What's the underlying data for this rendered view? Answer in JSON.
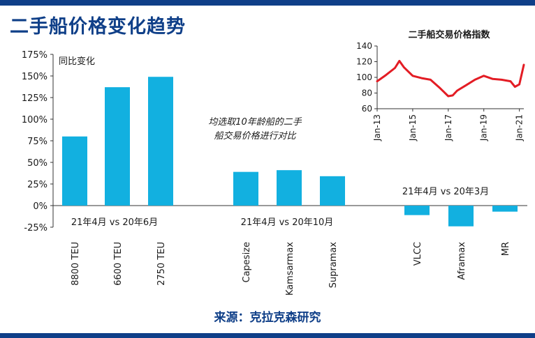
{
  "header": {
    "title": "二手船价格变化趋势"
  },
  "footer": {
    "source": "来源：克拉克森研究"
  },
  "colors": {
    "bar": "#12b0e0",
    "line": "#e31c24",
    "accent": "#0f3f88"
  },
  "chart_data": [
    {
      "type": "bar",
      "ylabel": "同比变化",
      "ylim": [
        -0.25,
        1.75
      ],
      "yticks": [
        "-25%",
        "0%",
        "25%",
        "50%",
        "75%",
        "100%",
        "125%",
        "150%",
        "175%"
      ],
      "annotation_lines": [
        "均选取10年龄船的二手",
        "船交易价格进行对比"
      ],
      "groups": [
        {
          "label": "21年4月 vs 20年6月",
          "categories": [
            "8800 TEU",
            "6600 TEU",
            "2750 TEU"
          ],
          "values": [
            0.8,
            1.37,
            1.49
          ]
        },
        {
          "label": "21年4月 vs 20年10月",
          "categories": [
            "Capesize",
            "Kamsarmax",
            "Supramax"
          ],
          "values": [
            0.39,
            0.41,
            0.34
          ]
        },
        {
          "label": "21年4月 vs 20年3月",
          "categories": [
            "VLCC",
            "Aframax",
            "MR"
          ],
          "values": [
            -0.11,
            -0.24,
            -0.07
          ]
        }
      ]
    },
    {
      "type": "line",
      "title": "二手船交易价格指数",
      "ylim": [
        60,
        140
      ],
      "yticks": [
        "60",
        "80",
        "100",
        "120",
        "140"
      ],
      "xticks": [
        "Jan-13",
        "Jan-15",
        "Jan-17",
        "Jan-19",
        "Jan-21"
      ],
      "x": [
        "2013-01",
        "2013-07",
        "2014-01",
        "2014-04",
        "2014-07",
        "2015-01",
        "2015-07",
        "2016-01",
        "2016-07",
        "2017-01",
        "2017-04",
        "2017-07",
        "2018-01",
        "2018-07",
        "2019-01",
        "2019-07",
        "2020-01",
        "2020-04",
        "2020-07",
        "2020-10",
        "2021-01",
        "2021-04"
      ],
      "values": [
        95,
        103,
        112,
        121,
        113,
        102,
        99,
        97,
        87,
        76,
        77,
        83,
        90,
        97,
        102,
        98,
        97,
        96,
        95,
        88,
        91,
        116
      ]
    }
  ]
}
